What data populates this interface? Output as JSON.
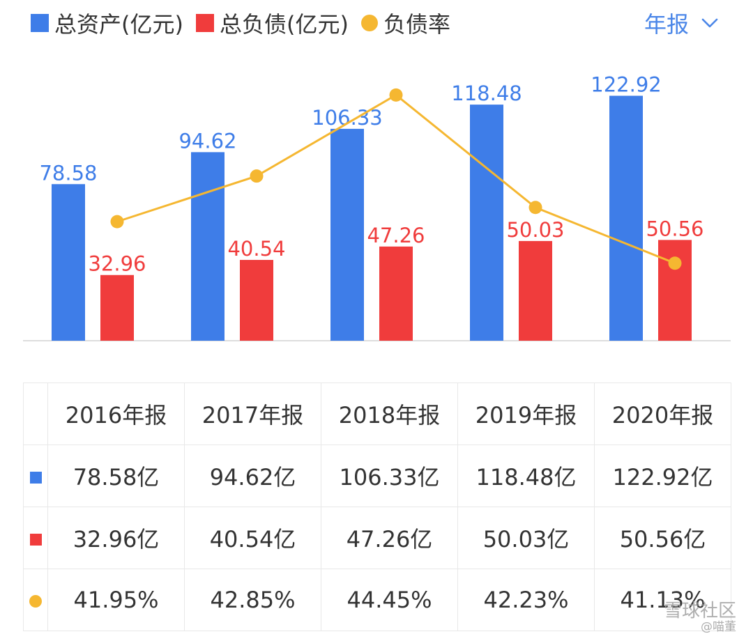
{
  "legend": {
    "assets_label": "总资产(亿元)",
    "liabilities_label": "总负债(亿元)",
    "ratio_label": "负债率"
  },
  "period_selector": {
    "label": "年报"
  },
  "colors": {
    "assets": "#3e7de8",
    "liabilities": "#f03c3c",
    "ratio": "#f5b731",
    "accent": "#4a86e8"
  },
  "chart_data": {
    "type": "bar",
    "categories": [
      "2016年报",
      "2017年报",
      "2018年报",
      "2019年报",
      "2020年报"
    ],
    "series": [
      {
        "name": "总资产(亿元)",
        "kind": "bar",
        "values": [
          78.58,
          94.62,
          106.33,
          118.48,
          122.92
        ],
        "labels": [
          "78.58",
          "94.62",
          "106.33",
          "118.48",
          "122.92"
        ]
      },
      {
        "name": "总负债(亿元)",
        "kind": "bar",
        "values": [
          32.96,
          40.54,
          47.26,
          50.03,
          50.56
        ],
        "labels": [
          "32.96",
          "40.54",
          "47.26",
          "50.03",
          "50.56"
        ]
      },
      {
        "name": "负债率",
        "kind": "line",
        "values": [
          41.95,
          42.85,
          44.45,
          42.23,
          41.13
        ]
      }
    ],
    "bar_ylim": [
      0,
      150
    ],
    "ratio_ylim": [
      39.6,
      45.5
    ]
  },
  "table": {
    "headers": [
      "2016年报",
      "2017年报",
      "2018年报",
      "2019年报",
      "2020年报"
    ],
    "rows": [
      {
        "key": "assets",
        "cells": [
          "78.58亿",
          "94.62亿",
          "106.33亿",
          "118.48亿",
          "122.92亿"
        ]
      },
      {
        "key": "liabilities",
        "cells": [
          "32.96亿",
          "40.54亿",
          "47.26亿",
          "50.03亿",
          "50.56亿"
        ]
      },
      {
        "key": "ratio",
        "cells": [
          "41.95%",
          "42.85%",
          "44.45%",
          "42.23%",
          "41.13%"
        ]
      }
    ]
  },
  "watermark": {
    "line1": "雪球社区",
    "line2": "@喵董"
  }
}
